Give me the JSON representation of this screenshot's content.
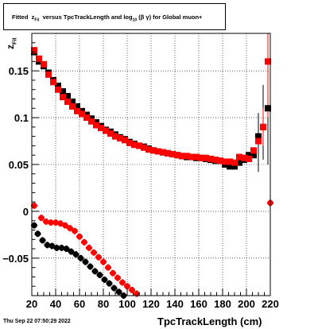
{
  "title": {
    "prefix": "Fitted",
    "var": "z",
    "var_sub": "Fit",
    "middle": "versus TpcTrackLength and log",
    "log_sub": "10",
    "suffix": "(β γ) for Global muon+"
  },
  "footer": "Thu Sep 22 07:50:29 2022",
  "xlabel": "TpcTrackLength (cm)",
  "ylabel": {
    "main": "z",
    "sub": "Fit"
  },
  "chart_data": {
    "type": "scatter",
    "xlim": [
      20,
      220
    ],
    "ylim": [
      -0.09,
      0.19
    ],
    "x_ticks": [
      20,
      40,
      60,
      80,
      100,
      120,
      140,
      160,
      180,
      200,
      220
    ],
    "y_ticks": [
      -0.05,
      0,
      0.05,
      0.1,
      0.15
    ],
    "y_tick_labels": [
      "−0.05",
      "0",
      "0.05",
      "0.1",
      "0.15"
    ],
    "grid": true,
    "series": [
      {
        "color": "#000000",
        "marker": "square",
        "points": [
          [
            22,
            0.17
          ],
          [
            26,
            0.16
          ],
          [
            30,
            0.155
          ],
          [
            34,
            0.148
          ],
          [
            38,
            0.14
          ],
          [
            42,
            0.134
          ],
          [
            46,
            0.128
          ],
          [
            50,
            0.123
          ],
          [
            54,
            0.117
          ],
          [
            58,
            0.112
          ],
          [
            62,
            0.107
          ],
          [
            66,
            0.103
          ],
          [
            70,
            0.099
          ],
          [
            74,
            0.095
          ],
          [
            78,
            0.091
          ],
          [
            82,
            0.087
          ],
          [
            86,
            0.085
          ],
          [
            90,
            0.082
          ],
          [
            94,
            0.079
          ],
          [
            98,
            0.077
          ],
          [
            102,
            0.074
          ],
          [
            106,
            0.072
          ],
          [
            110,
            0.07
          ],
          [
            114,
            0.069
          ],
          [
            118,
            0.067
          ],
          [
            122,
            0.065
          ],
          [
            126,
            0.064
          ],
          [
            130,
            0.063
          ],
          [
            134,
            0.062
          ],
          [
            138,
            0.061
          ],
          [
            142,
            0.06
          ],
          [
            146,
            0.059
          ],
          [
            150,
            0.058
          ],
          [
            154,
            0.058
          ],
          [
            158,
            0.057
          ],
          [
            162,
            0.057
          ],
          [
            166,
            0.056
          ],
          [
            170,
            0.055
          ],
          [
            174,
            0.054
          ],
          [
            178,
            0.054
          ],
          [
            182,
            0.05
          ],
          [
            186,
            0.048
          ],
          [
            190,
            0.048
          ],
          [
            194,
            0.052
          ],
          [
            198,
            0.055
          ],
          [
            202,
            0.06
          ],
          [
            206,
            0.06
          ],
          [
            210,
            0.08
          ],
          [
            214,
            0.09
          ],
          [
            218,
            0.11
          ]
        ]
      },
      {
        "color": "#ff0000",
        "marker": "square",
        "points": [
          [
            22,
            0.172
          ],
          [
            26,
            0.163
          ],
          [
            30,
            0.157
          ],
          [
            34,
            0.146
          ],
          [
            38,
            0.138
          ],
          [
            42,
            0.13
          ],
          [
            46,
            0.122
          ],
          [
            50,
            0.117
          ],
          [
            54,
            0.112
          ],
          [
            58,
            0.107
          ],
          [
            62,
            0.104
          ],
          [
            66,
            0.1
          ],
          [
            70,
            0.096
          ],
          [
            74,
            0.092
          ],
          [
            78,
            0.089
          ],
          [
            82,
            0.086
          ],
          [
            86,
            0.083
          ],
          [
            90,
            0.08
          ],
          [
            94,
            0.078
          ],
          [
            98,
            0.076
          ],
          [
            102,
            0.073
          ],
          [
            106,
            0.071
          ],
          [
            110,
            0.07
          ],
          [
            114,
            0.068
          ],
          [
            118,
            0.066
          ],
          [
            122,
            0.065
          ],
          [
            126,
            0.064
          ],
          [
            130,
            0.063
          ],
          [
            134,
            0.062
          ],
          [
            138,
            0.061
          ],
          [
            142,
            0.06
          ],
          [
            146,
            0.059
          ],
          [
            150,
            0.059
          ],
          [
            154,
            0.058
          ],
          [
            158,
            0.058
          ],
          [
            162,
            0.057
          ],
          [
            166,
            0.057
          ],
          [
            170,
            0.056
          ],
          [
            174,
            0.055
          ],
          [
            178,
            0.054
          ],
          [
            182,
            0.053
          ],
          [
            186,
            0.053
          ],
          [
            190,
            0.052
          ],
          [
            194,
            0.058
          ],
          [
            198,
            0.057
          ],
          [
            202,
            0.056
          ],
          [
            206,
            0.065
          ],
          [
            210,
            0.075
          ],
          [
            214,
            0.09
          ],
          [
            218,
            0.16
          ]
        ]
      },
      {
        "color": "#ff0000",
        "marker": "circle",
        "points": [
          [
            22,
            0.006
          ],
          [
            28,
            -0.007
          ],
          [
            32,
            -0.011
          ],
          [
            36,
            -0.012
          ],
          [
            40,
            -0.012
          ],
          [
            44,
            -0.013
          ],
          [
            48,
            -0.015
          ],
          [
            52,
            -0.018
          ],
          [
            56,
            -0.021
          ],
          [
            60,
            -0.027
          ],
          [
            64,
            -0.033
          ],
          [
            68,
            -0.039
          ],
          [
            72,
            -0.044
          ],
          [
            76,
            -0.049
          ],
          [
            80,
            -0.054
          ],
          [
            84,
            -0.06
          ],
          [
            88,
            -0.066
          ],
          [
            92,
            -0.071
          ],
          [
            96,
            -0.076
          ],
          [
            100,
            -0.08
          ],
          [
            104,
            -0.084
          ],
          [
            108,
            -0.088
          ],
          [
            112,
            -0.092
          ],
          [
            220,
            0.009
          ]
        ]
      },
      {
        "color": "#000000",
        "marker": "circle",
        "points": [
          [
            22,
            -0.015
          ],
          [
            25,
            -0.024
          ],
          [
            29,
            -0.031
          ],
          [
            33,
            -0.036
          ],
          [
            37,
            -0.037
          ],
          [
            41,
            -0.039
          ],
          [
            45,
            -0.039
          ],
          [
            49,
            -0.04
          ],
          [
            53,
            -0.043
          ],
          [
            57,
            -0.046
          ],
          [
            61,
            -0.05
          ],
          [
            65,
            -0.054
          ],
          [
            69,
            -0.059
          ],
          [
            73,
            -0.064
          ],
          [
            77,
            -0.068
          ],
          [
            81,
            -0.073
          ],
          [
            85,
            -0.077
          ],
          [
            89,
            -0.082
          ],
          [
            93,
            -0.086
          ],
          [
            97,
            -0.09
          ]
        ]
      }
    ],
    "error_bars": [
      {
        "color": "#000000",
        "x": 210,
        "ylo": 0.042,
        "yhi": 0.105
      },
      {
        "color": "#000000",
        "x": 214,
        "ylo": 0.055,
        "yhi": 0.135
      },
      {
        "color": "#000000",
        "x": 218,
        "ylo": 0.05,
        "yhi": 0.15
      },
      {
        "color": "#ff0000",
        "x": 214,
        "ylo": 0.07,
        "yhi": 0.11
      },
      {
        "color": "#ff0000",
        "x": 218,
        "ylo": 0.1,
        "yhi": 0.19
      },
      {
        "color": "#ff0000",
        "x": 220,
        "ylo": -0.09,
        "yhi": 0.19
      }
    ]
  }
}
